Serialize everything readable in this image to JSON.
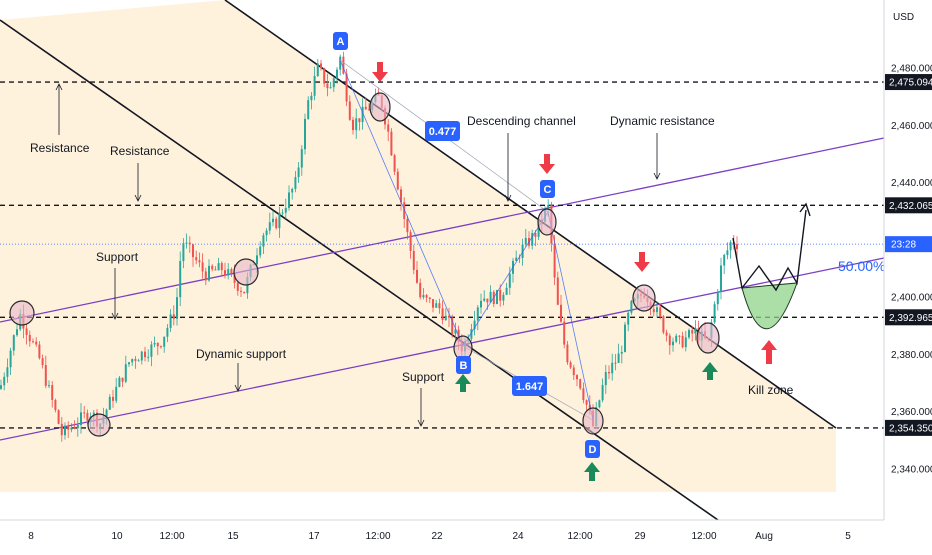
{
  "chart_data": {
    "type": "candlestick",
    "currency_label": "USD",
    "x_ticks": [
      "8",
      "10",
      "12:00",
      "15",
      "17",
      "12:00",
      "22",
      "24",
      "12:00",
      "29",
      "12:00",
      "Aug",
      "5"
    ],
    "y_ticks": [
      "2,340.000",
      "2,360.000",
      "2,380.000",
      "2,400.000",
      "2,420.000",
      "2,440.000",
      "2,460.000",
      "2,480.000"
    ],
    "ylim": [
      2332,
      2492
    ],
    "price_badges": [
      {
        "label": "2,475.094",
        "value": 2475.094
      },
      {
        "label": "2,432.065",
        "value": 2432.065
      },
      {
        "label": "2,392.965",
        "value": 2392.965
      },
      {
        "label": "2,354.350",
        "value": 2354.35
      }
    ],
    "current_price_label": "23:28",
    "current_price": 2418.5,
    "fib_label": "50.00%",
    "point_labels": [
      "A",
      "B",
      "C",
      "D"
    ],
    "ratio_labels": [
      "0.477",
      "1.647"
    ],
    "annotations": {
      "resistance_1": "Resistance",
      "resistance_2": "Resistance",
      "descending_channel": "Descending channel",
      "dynamic_resistance": "Dynamic resistance",
      "support_1": "Support",
      "dynamic_support": "Dynamic support",
      "support_2": "Support",
      "kill_zone": "Kill zone"
    },
    "key_points": {
      "A": 2484,
      "B": 2382,
      "C": 2432,
      "D": 2355
    },
    "colors": {
      "bull": "#26a69a",
      "bear": "#ef5350",
      "channel_fill": "#fde9c3",
      "trend_line": "#7b3fc4",
      "label_bg": "#2962ff",
      "arrow_up": "#1b8a5a",
      "arrow_down": "#ef3b48",
      "kill_zone": "#8fd48a"
    }
  }
}
